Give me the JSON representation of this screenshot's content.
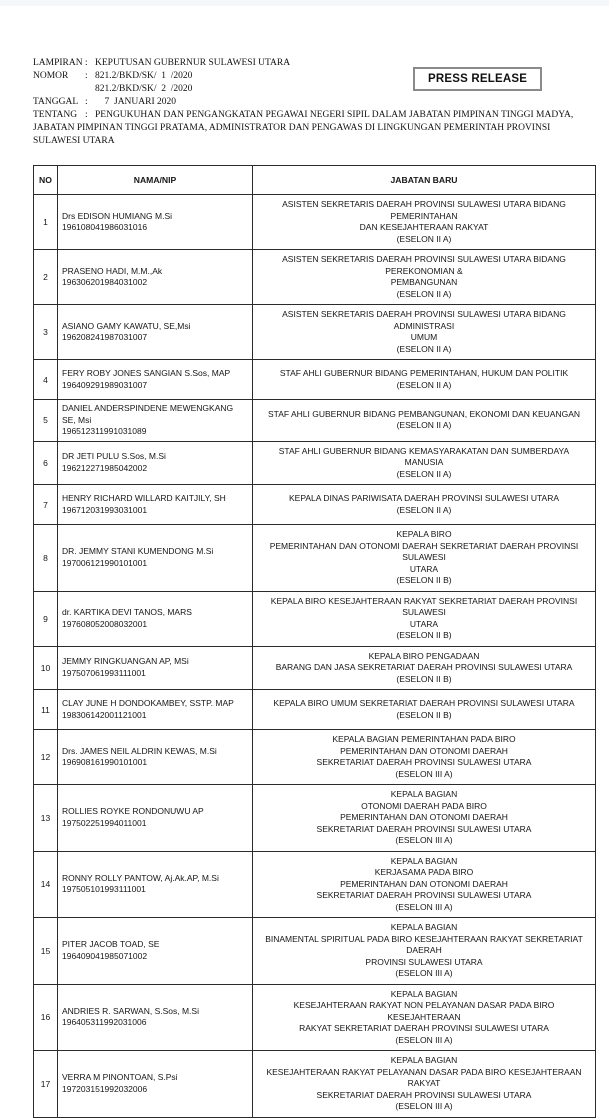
{
  "page": {
    "press_release_label": "PRESS RELEASE"
  },
  "doc_header": {
    "colon": ":",
    "lampiran_label": "LAMPIRAN",
    "lampiran_value": "KEPUTUSAN GUBERNUR SULAWESI UTARA",
    "nomor_label": "NOMOR",
    "nomor_value_line1": "821.2/BKD/SK/  1  /2020",
    "nomor_value_line2": "821.2/BKD/SK/  2  /2020",
    "tanggal_label": "TANGGAL",
    "tanggal_value": "    7  JANUARI 2020",
    "tentang_label": "TENTANG",
    "tentang_value": "PENGUKUHAN DAN PENGANGKATAN PEGAWAI NEGERI SIPIL DALAM JABATAN PIMPINAN TINGGI MADYA, JABATAN PIMPINAN TINGGI PRATAMA, ADMINISTRATOR DAN PENGAWAS DI LINGKUNGAN PEMERINTAH PROVINSI SULAWESI UTARA"
  },
  "table": {
    "headers": [
      "NO",
      "NAMA/NIP",
      "JABATAN BARU"
    ],
    "rows": [
      {
        "no": "1",
        "name": "Drs EDISON HUMIANG M.Si",
        "nip": "196108041986031016",
        "jabatan": [
          "ASISTEN SEKRETARIS DAERAH PROVINSI SULAWESI UTARA BIDANG PEMERINTAHAN",
          "DAN KESEJAHTERAAN RAKYAT",
          "(ESELON II A)"
        ]
      },
      {
        "no": "2",
        "name": "PRASENO HADI, M.M.,Ak",
        "nip": "196306201984031002",
        "jabatan": [
          "ASISTEN SEKRETARIS DAERAH PROVINSI SULAWESI UTARA BIDANG PEREKONOMIAN &",
          "PEMBANGUNAN",
          "(ESELON II A)"
        ]
      },
      {
        "no": "3",
        "name": "ASIANO GAMY KAWATU, SE,Msi",
        "nip": "196208241987031007",
        "jabatan": [
          "ASISTEN SEKRETARIS DAERAH PROVINSI SULAWESI UTARA BIDANG ADMINISTRASI",
          "UMUM",
          "(ESELON II A)"
        ]
      },
      {
        "no": "4",
        "name": "FERY ROBY JONES SANGIAN S.Sos, MAP",
        "nip": "196409291989031007",
        "jabatan": [
          "STAF AHLI GUBERNUR BIDANG PEMERINTAHAN, HUKUM DAN POLITIK (ESELON II A)"
        ]
      },
      {
        "no": "5",
        "name": "DANIEL ANDERSPINDENE MEWENGKANG SE, Msi",
        "nip": "196512311991031089",
        "jabatan": [
          "STAF AHLI GUBERNUR BIDANG PEMBANGUNAN, EKONOMI DAN KEUANGAN",
          "(ESELON II A)"
        ]
      },
      {
        "no": "6",
        "name": "DR JETI PULU S.Sos, M.Si",
        "nip": "196212271985042002",
        "jabatan": [
          "STAF AHLI GUBERNUR BIDANG KEMASYARAKATAN DAN SUMBERDAYA MANUSIA",
          "(ESELON II A)"
        ]
      },
      {
        "no": "7",
        "name": "HENRY RICHARD WILLARD KAITJILY, SH",
        "nip": "196712031993031001",
        "jabatan": [
          "KEPALA DINAS PARIWISATA DAERAH PROVINSI SULAWESI UTARA",
          "(ESELON II A)"
        ]
      },
      {
        "no": "8",
        "name": "DR. JEMMY STANI KUMENDONG M.Si",
        "nip": "197006121990101001",
        "jabatan": [
          "KEPALA BIRO",
          "PEMERINTAHAN DAN OTONOMI DAERAH SEKRETARIAT DAERAH PROVINSI SULAWESI",
          "UTARA",
          "(ESELON II B)"
        ]
      },
      {
        "no": "9",
        "name": "dr. KARTIKA DEVI TANOS, MARS",
        "nip": "197608052008032001",
        "jabatan": [
          "KEPALA BIRO KESEJAHTERAAN RAKYAT SEKRETARIAT DAERAH PROVINSI SULAWESI",
          "UTARA",
          "(ESELON II B)"
        ]
      },
      {
        "no": "10",
        "name": "JEMMY RINGKUANGAN AP, MSi",
        "nip": "197507061993111001",
        "jabatan": [
          "KEPALA BIRO PENGADAAN",
          "BARANG DAN JASA SEKRETARIAT DAERAH PROVINSI SULAWESI UTARA",
          "(ESELON II B)"
        ]
      },
      {
        "no": "11",
        "name": "CLAY JUNE H DONDOKAMBEY, SSTP. MAP",
        "nip": "198306142001121001",
        "jabatan": [
          "KEPALA BIRO UMUM SEKRETARIAT DAERAH PROVINSI SULAWESI UTARA",
          "(ESELON II B)"
        ]
      },
      {
        "no": "12",
        "name": "Drs. JAMES NEIL ALDRIN KEWAS, M.Si",
        "nip": "196908161990101001",
        "jabatan": [
          "KEPALA BAGIAN PEMERINTAHAN PADA BIRO",
          "PEMERINTAHAN DAN OTONOMI DAERAH",
          "SEKRETARIAT DAERAH PROVINSI SULAWESI UTARA",
          "(ESELON III A)"
        ]
      },
      {
        "no": "13",
        "name": "ROLLIES ROYKE RONDONUWU AP",
        "nip": "197502251994011001",
        "jabatan": [
          "KEPALA BAGIAN",
          "OTONOMI DAERAH PADA BIRO",
          "PEMERINTAHAN DAN OTONOMI DAERAH",
          "SEKRETARIAT DAERAH PROVINSI SULAWESI UTARA",
          "(ESELON III A)"
        ]
      },
      {
        "no": "14",
        "name": "RONNY ROLLY PANTOW, Aj.Ak.AP, M.Si",
        "nip": "197505101993111001",
        "jabatan": [
          "KEPALA BAGIAN",
          "KERJASAMA PADA BIRO",
          "PEMERINTAHAN DAN OTONOMI DAERAH",
          "SEKRETARIAT DAERAH PROVINSI SULAWESI UTARA",
          "(ESELON III A)"
        ]
      },
      {
        "no": "15",
        "name": "PITER JACOB TOAD, SE",
        "nip": "196409041985071002",
        "jabatan": [
          "KEPALA BAGIAN",
          "BINAMENTAL SPIRITUAL PADA  BIRO KESEJAHTERAAN RAKYAT SEKRETARIAT DAERAH",
          "PROVINSI SULAWESI UTARA",
          "(ESELON III A)"
        ]
      },
      {
        "no": "16",
        "name": "ANDRIES R. SARWAN, S.Sos, M.Si",
        "nip": "196405311992031006",
        "jabatan": [
          "KEPALA BAGIAN",
          "KESEJAHTERAAN RAKYAT NON PELAYANAN DASAR  PADA  BIRO KESEJAHTERAAN",
          "RAKYAT SEKRETARIAT DAERAH PROVINSI SULAWESI UTARA",
          "(ESELON III A)"
        ]
      },
      {
        "no": "17",
        "name": "VERRA M PINONTOAN, S.Psi",
        "nip": "197203151992032006",
        "jabatan": [
          "KEPALA BAGIAN",
          "KESEJAHTERAAN RAKYAT PELAYANAN DASAR  PADA  BIRO KESEJAHTERAAN RAKYAT",
          "SEKRETARIAT DAERAH PROVINSI SULAWESI UTARA",
          "(ESELON III A)"
        ]
      }
    ]
  }
}
